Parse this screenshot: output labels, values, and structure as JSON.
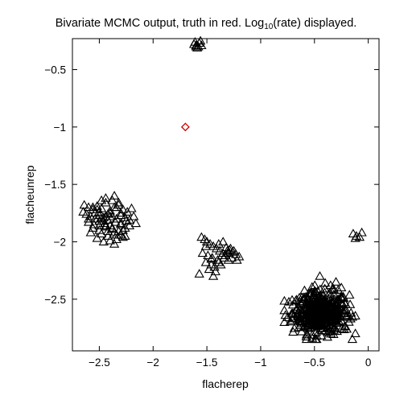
{
  "chart_data": {
    "type": "scatter",
    "title_parts": {
      "pre": "Bivariate MCMC output, truth in red. Log",
      "sub": "10",
      "post": "(rate) displayed."
    },
    "xlabel": "flacherep",
    "ylabel": "flacheunrep",
    "xlim": [
      -2.75,
      0.1
    ],
    "ylim": [
      -2.95,
      -0.23
    ],
    "xticks": [
      -2.5,
      -2,
      -1.5,
      -1,
      -0.5,
      0
    ],
    "xtick_labels": [
      "−2.5",
      "−2",
      "−1.5",
      "−1",
      "−0.5",
      "0"
    ],
    "yticks": [
      -0.5,
      -1,
      -1.5,
      -2,
      -2.5
    ],
    "ytick_labels": [
      "−0.5",
      "−1",
      "−1.5",
      "−2",
      "−2.5"
    ],
    "grid": false,
    "legend": "none",
    "colors": {
      "samples": "#000000",
      "truth": "#cc0000"
    },
    "markers": {
      "samples": "triangle-open",
      "truth": "diamond-open"
    },
    "truth": {
      "x": -1.7,
      "y": -1.0
    },
    "clusters": [
      {
        "x": [
          -1.62,
          -1.61,
          -1.6,
          -1.58,
          -1.56,
          -1.59,
          -1.57,
          -1.55,
          -1.6
        ],
        "y": [
          -0.28,
          -0.26,
          -0.29,
          -0.3,
          -0.25,
          -0.31,
          -0.27,
          -0.29,
          -0.3
        ]
      },
      {
        "x": [
          -2.64,
          -2.6,
          -2.56,
          -2.52,
          -2.48,
          -2.44,
          -2.4,
          -2.36,
          -2.32,
          -2.28,
          -2.24,
          -2.2,
          -2.62,
          -2.58,
          -2.54,
          -2.5,
          -2.46,
          -2.42,
          -2.38,
          -2.34,
          -2.3,
          -2.26,
          -2.22,
          -2.18,
          -2.6,
          -2.55,
          -2.5,
          -2.45,
          -2.4,
          -2.35,
          -2.3,
          -2.25,
          -2.56,
          -2.5,
          -2.44,
          -2.38,
          -2.32,
          -2.26,
          -2.48,
          -2.42,
          -2.36,
          -2.3,
          -2.52,
          -2.4,
          -2.28,
          -2.46,
          -2.34,
          -2.58,
          -2.22,
          -2.16,
          -2.65,
          -2.44,
          -2.38,
          -2.32,
          -2.48,
          -2.36,
          -2.42,
          -2.54,
          -2.3,
          -2.5,
          -2.4,
          -2.34,
          -2.46,
          -2.38,
          -2.44,
          -2.28,
          -2.52,
          -2.36,
          -2.42,
          -2.48,
          -2.3,
          -2.56,
          -2.4,
          -2.34,
          -2.6,
          -2.26,
          -2.5,
          -2.44
        ],
        "y": [
          -1.68,
          -1.7,
          -1.72,
          -1.69,
          -1.71,
          -1.66,
          -1.73,
          -1.7,
          -1.68,
          -1.72,
          -1.74,
          -1.71,
          -1.76,
          -1.78,
          -1.75,
          -1.77,
          -1.79,
          -1.76,
          -1.78,
          -1.8,
          -1.77,
          -1.79,
          -1.81,
          -1.78,
          -1.83,
          -1.85,
          -1.82,
          -1.84,
          -1.86,
          -1.83,
          -1.85,
          -1.82,
          -1.88,
          -1.9,
          -1.87,
          -1.89,
          -1.91,
          -1.88,
          -1.93,
          -1.95,
          -1.92,
          -1.94,
          -1.97,
          -1.99,
          -1.96,
          -2.0,
          -1.98,
          -1.92,
          -1.86,
          -1.84,
          -1.74,
          -1.62,
          -1.64,
          -1.66,
          -1.64,
          -1.6,
          -1.81,
          -1.8,
          -1.84,
          -1.86,
          -1.75,
          -1.7,
          -1.82,
          -1.88,
          -1.78,
          -1.9,
          -1.72,
          -2.02,
          -1.91,
          -1.8,
          -1.75,
          -1.7,
          -1.78,
          -1.94,
          -1.8,
          -1.95,
          -1.74,
          -1.86
        ]
      },
      {
        "x": [
          -1.55,
          -1.52,
          -1.5,
          -1.47,
          -1.44,
          -1.41,
          -1.38,
          -1.35,
          -1.32,
          -1.29,
          -1.26,
          -1.23,
          -1.2,
          -1.54,
          -1.49,
          -1.45,
          -1.4,
          -1.36,
          -1.31,
          -1.27,
          -1.22,
          -1.51,
          -1.46,
          -1.43,
          -1.39,
          -1.34,
          -1.3,
          -1.25,
          -1.48,
          -1.42,
          -1.37,
          -1.33,
          -1.28,
          -1.57,
          -1.44,
          -1.39,
          -1.35,
          -1.3,
          -1.51,
          -1.46
        ],
        "y": [
          -1.96,
          -1.98,
          -2.0,
          -2.02,
          -2.04,
          -2.06,
          -2.08,
          -2.1,
          -2.05,
          -2.07,
          -2.09,
          -2.11,
          -2.13,
          -2.1,
          -2.12,
          -2.14,
          -2.16,
          -2.12,
          -2.08,
          -2.14,
          -2.16,
          -2.18,
          -2.2,
          -2.22,
          -2.18,
          -2.14,
          -2.1,
          -2.08,
          -2.24,
          -2.26,
          -2.2,
          -2.12,
          -2.06,
          -2.28,
          -2.3,
          -2.02,
          -2.0,
          -2.16,
          -2.04,
          -2.15
        ]
      },
      {
        "x": [
          -0.14,
          -0.11,
          -0.06,
          -0.12,
          -0.08
        ],
        "y": [
          -1.93,
          -1.95,
          -1.92,
          -1.97,
          -1.96
        ]
      }
    ],
    "main_cluster": {
      "center": [
        -0.44,
        -2.62
      ],
      "spread": [
        0.13,
        0.09
      ],
      "count": 420,
      "outliers_x": [
        -0.77,
        -0.75,
        -0.7,
        -0.62,
        -0.58,
        -0.55,
        -0.6,
        -0.22,
        -0.2,
        -0.18,
        -0.25,
        -0.28,
        -0.32,
        -0.35,
        -0.4,
        -0.48,
        -0.52,
        -0.3,
        -0.38,
        -0.16,
        -0.45
      ],
      "outliers_y": [
        -2.64,
        -2.66,
        -2.55,
        -2.52,
        -2.48,
        -2.45,
        -2.5,
        -2.74,
        -2.76,
        -2.7,
        -2.4,
        -2.42,
        -2.46,
        -2.38,
        -2.36,
        -2.82,
        -2.84,
        -2.35,
        -2.83,
        -2.62,
        -2.3
      ]
    }
  }
}
